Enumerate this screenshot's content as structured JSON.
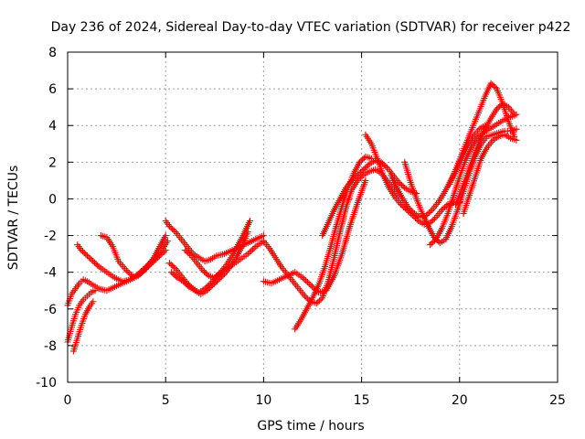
{
  "chart_data": {
    "type": "scatter",
    "title": "Day 236 of 2024, Sidereal Day-to-day VTEC variation (SDTVAR) for receiver p422",
    "xlabel": "GPS time / hours",
    "ylabel": "SDTVAR / TECUs",
    "xlim": [
      0,
      25
    ],
    "ylim": [
      -10,
      8
    ],
    "x_ticks": [
      0,
      5,
      10,
      15,
      20,
      25
    ],
    "y_ticks": [
      -10,
      -8,
      -6,
      -4,
      -2,
      0,
      2,
      4,
      6,
      8
    ],
    "grid": true,
    "marker": "+",
    "color": "#ff0000",
    "series": [
      {
        "x": [
          0.0,
          0.2,
          0.4,
          0.6,
          0.8,
          1.0,
          1.3,
          1.6,
          2.0,
          2.4,
          2.8,
          3.2,
          3.6,
          4.0,
          4.4,
          4.8,
          5.0
        ],
        "y": [
          -5.8,
          -5.2,
          -4.9,
          -4.6,
          -4.4,
          -4.5,
          -4.7,
          -4.9,
          -5.0,
          -4.8,
          -4.6,
          -4.4,
          -4.2,
          -3.8,
          -3.2,
          -2.4,
          -2.0
        ]
      },
      {
        "x": [
          0.5,
          0.7,
          1.0,
          1.3,
          1.6,
          2.0,
          2.4,
          2.8,
          3.2,
          3.6,
          4.0,
          4.4,
          4.8,
          5.1
        ],
        "y": [
          -2.5,
          -2.8,
          -3.1,
          -3.4,
          -3.7,
          -4.0,
          -4.3,
          -4.5,
          -4.4,
          -4.1,
          -3.7,
          -3.3,
          -2.8,
          -2.3
        ]
      },
      {
        "x": [
          1.7,
          2.0,
          2.3,
          2.6,
          3.0,
          3.4,
          3.8,
          4.2,
          4.6,
          5.0
        ],
        "y": [
          -2.0,
          -2.1,
          -2.6,
          -3.4,
          -3.9,
          -4.3,
          -4.0,
          -3.6,
          -3.2,
          -2.8
        ]
      },
      {
        "x": [
          0.0,
          0.2,
          0.4,
          0.6,
          0.8,
          1.0,
          1.2,
          1.4
        ],
        "y": [
          -7.8,
          -7.0,
          -6.3,
          -5.8,
          -5.5,
          -5.3,
          -5.1,
          -5.0
        ]
      },
      {
        "x": [
          0.3,
          0.5,
          0.7,
          0.9,
          1.1,
          1.3
        ],
        "y": [
          -8.3,
          -7.6,
          -6.9,
          -6.3,
          -5.9,
          -5.6
        ]
      },
      {
        "x": [
          5.0,
          5.2,
          5.5,
          5.8,
          6.1,
          6.4,
          6.7,
          7.0,
          7.3,
          7.6,
          8.0,
          8.4,
          8.8,
          9.2,
          9.6,
          10.0
        ],
        "y": [
          -1.2,
          -1.5,
          -1.8,
          -2.2,
          -2.6,
          -3.0,
          -3.2,
          -3.4,
          -3.3,
          -3.1,
          -3.0,
          -2.8,
          -2.6,
          -2.4,
          -2.2,
          -2.0
        ]
      },
      {
        "x": [
          5.2,
          5.5,
          5.8,
          6.1,
          6.4,
          6.7,
          7.0,
          7.3,
          7.6,
          8.0,
          8.4,
          8.8,
          9.2,
          9.6,
          10.0
        ],
        "y": [
          -3.5,
          -3.8,
          -4.2,
          -4.6,
          -4.9,
          -5.1,
          -4.9,
          -4.6,
          -4.2,
          -3.9,
          -3.6,
          -3.3,
          -3.0,
          -2.6,
          -2.3
        ]
      },
      {
        "x": [
          5.3,
          5.6,
          5.9,
          6.2,
          6.5,
          6.8,
          7.1,
          7.4,
          7.7,
          8.0,
          8.3,
          8.6,
          8.9,
          9.2
        ],
        "y": [
          -4.0,
          -4.3,
          -4.5,
          -4.8,
          -5.0,
          -5.2,
          -5.0,
          -4.7,
          -4.4,
          -4.1,
          -3.7,
          -3.2,
          -2.6,
          -1.8
        ]
      },
      {
        "x": [
          6.0,
          6.3,
          6.6,
          6.9,
          7.2,
          7.5,
          7.8,
          8.1,
          8.4,
          8.7,
          9.0,
          9.3
        ],
        "y": [
          -2.8,
          -3.1,
          -3.5,
          -3.9,
          -4.2,
          -4.3,
          -4.0,
          -3.6,
          -3.1,
          -2.5,
          -1.9,
          -1.2
        ]
      },
      {
        "x": [
          10.0,
          10.3,
          10.6,
          10.9,
          11.2,
          11.5,
          11.8,
          12.1,
          12.4,
          12.7,
          13.0,
          13.3,
          13.6,
          13.9,
          14.2,
          14.5,
          14.8,
          15.1,
          15.4,
          15.7,
          16.0,
          16.3,
          16.6,
          16.9
        ],
        "y": [
          -2.3,
          -2.7,
          -3.2,
          -3.7,
          -4.1,
          -4.5,
          -4.9,
          -5.3,
          -5.6,
          -5.7,
          -5.4,
          -4.5,
          -3.2,
          -1.8,
          -0.5,
          0.5,
          1.0,
          1.3,
          1.5,
          1.6,
          1.4,
          1.0,
          0.6,
          0.2
        ]
      },
      {
        "x": [
          10.0,
          10.4,
          10.8,
          11.2,
          11.6,
          12.0,
          12.4,
          12.8,
          13.2,
          13.6,
          14.0,
          14.4,
          14.8,
          15.2
        ],
        "y": [
          -4.5,
          -4.6,
          -4.4,
          -4.2,
          -4.0,
          -4.3,
          -4.7,
          -5.1,
          -5.0,
          -4.2,
          -3.0,
          -1.5,
          -0.2,
          1.0
        ]
      },
      {
        "x": [
          11.6,
          11.9,
          12.2,
          12.5,
          12.8,
          13.1,
          13.4,
          13.7,
          14.0,
          14.3,
          14.6,
          14.9,
          15.2,
          15.5
        ],
        "y": [
          -7.1,
          -6.6,
          -6.0,
          -5.4,
          -4.7,
          -3.8,
          -2.7,
          -1.5,
          -0.4,
          0.6,
          1.4,
          2.0,
          2.3,
          2.2
        ]
      },
      {
        "x": [
          13.0,
          13.3,
          13.6,
          13.9,
          14.2,
          14.5,
          14.8,
          15.1,
          15.4,
          15.7,
          16.0,
          16.3,
          16.6,
          16.9,
          17.2,
          17.5,
          17.8
        ],
        "y": [
          -2.0,
          -1.3,
          -0.6,
          0.0,
          0.6,
          1.0,
          1.3,
          1.6,
          1.9,
          2.1,
          2.0,
          1.7,
          1.3,
          0.9,
          0.6,
          0.4,
          0.3
        ]
      },
      {
        "x": [
          15.2,
          15.5,
          15.8,
          16.1,
          16.4,
          16.7,
          17.0,
          17.3,
          17.6,
          17.9,
          18.2,
          18.5,
          18.8,
          19.1,
          19.4,
          19.7,
          20.0
        ],
        "y": [
          3.5,
          3.0,
          2.2,
          1.3,
          0.6,
          0.1,
          -0.3,
          -0.6,
          -0.9,
          -1.2,
          -1.4,
          -1.3,
          -1.0,
          -0.6,
          -0.3,
          -0.2,
          -0.2
        ]
      },
      {
        "x": [
          16.5,
          16.8,
          17.1,
          17.4,
          17.7,
          18.0,
          18.3,
          18.6,
          18.9,
          19.2,
          19.5,
          19.8,
          20.1,
          20.4,
          20.7,
          21.0,
          21.3
        ],
        "y": [
          1.3,
          0.6,
          0.0,
          -0.5,
          -0.8,
          -1.0,
          -0.9,
          -0.6,
          -0.2,
          0.3,
          0.9,
          1.5,
          2.2,
          2.9,
          3.4,
          3.8,
          4.0
        ]
      },
      {
        "x": [
          17.2,
          17.5,
          17.8,
          18.1,
          18.4,
          18.7,
          19.0,
          19.3,
          19.6,
          19.9,
          20.2,
          20.5,
          20.8,
          21.1,
          21.4,
          21.7,
          22.0,
          22.3,
          22.6,
          22.9
        ],
        "y": [
          2.0,
          0.9,
          0.0,
          -0.8,
          -1.5,
          -2.1,
          -2.4,
          -2.2,
          -1.5,
          -0.6,
          0.4,
          1.4,
          2.3,
          3.0,
          3.4,
          3.5,
          3.6,
          3.7,
          3.7,
          3.8
        ]
      },
      {
        "x": [
          18.5,
          18.8,
          19.1,
          19.4,
          19.7,
          20.0,
          20.3,
          20.6,
          20.9,
          21.2,
          21.5,
          21.8,
          22.1,
          22.4,
          22.7,
          22.9
        ],
        "y": [
          -2.5,
          -2.2,
          -1.6,
          -0.8,
          0.2,
          1.2,
          2.1,
          2.8,
          3.3,
          3.6,
          3.8,
          4.0,
          4.2,
          4.4,
          4.5,
          4.6
        ]
      },
      {
        "x": [
          19.5,
          19.8,
          20.1,
          20.4,
          20.7,
          21.0,
          21.3,
          21.6,
          21.9,
          22.2,
          22.5,
          22.8
        ],
        "y": [
          0.8,
          1.6,
          2.4,
          3.2,
          4.0,
          4.8,
          5.6,
          6.3,
          6.0,
          5.2,
          4.2,
          3.4
        ]
      },
      {
        "x": [
          19.8,
          20.1,
          20.4,
          20.7,
          21.0,
          21.3,
          21.6,
          21.9,
          22.2,
          22.5,
          22.8
        ],
        "y": [
          -0.3,
          0.5,
          1.4,
          2.3,
          3.1,
          3.8,
          4.4,
          4.9,
          5.2,
          5.0,
          4.6
        ]
      },
      {
        "x": [
          20.2,
          20.5,
          20.8,
          21.1,
          21.4,
          21.7,
          22.0,
          22.3,
          22.6,
          22.9
        ],
        "y": [
          -0.8,
          0.2,
          1.2,
          2.2,
          2.8,
          3.2,
          3.4,
          3.5,
          3.3,
          3.2
        ]
      }
    ]
  }
}
